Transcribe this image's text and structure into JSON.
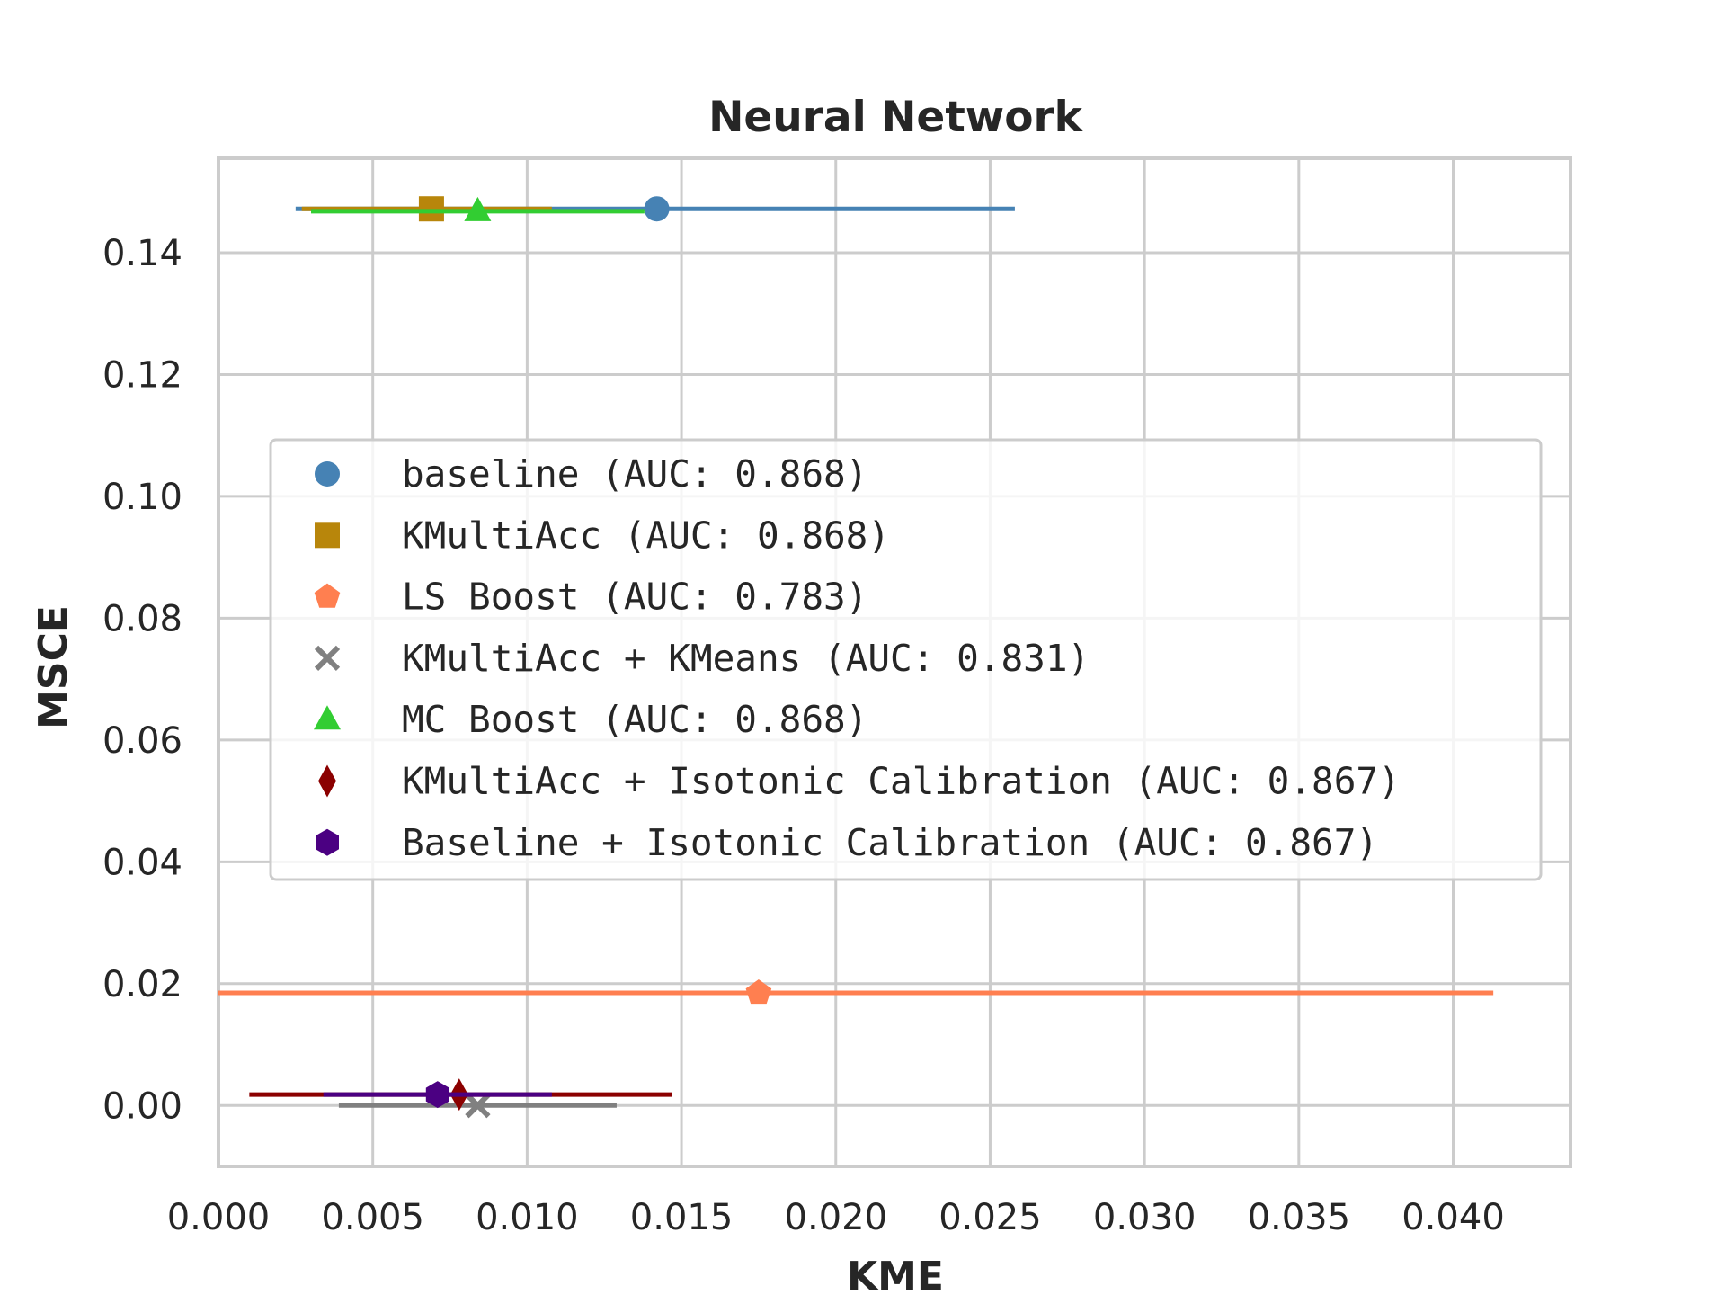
{
  "chart_data": {
    "type": "scatter",
    "title": "Neural Network",
    "xlabel": "KME",
    "ylabel": "MSCE",
    "xlim": [
      0.0,
      0.0438
    ],
    "ylim": [
      -0.01,
      0.1555
    ],
    "x_ticks": [
      "0.000",
      "0.005",
      "0.010",
      "0.015",
      "0.020",
      "0.025",
      "0.030",
      "0.035",
      "0.040"
    ],
    "x_tick_values": [
      0.0,
      0.005,
      0.01,
      0.015,
      0.02,
      0.025,
      0.03,
      0.035,
      0.04
    ],
    "y_ticks": [
      "0.00",
      "0.02",
      "0.04",
      "0.06",
      "0.08",
      "0.10",
      "0.12",
      "0.14"
    ],
    "y_tick_values": [
      0.0,
      0.02,
      0.04,
      0.06,
      0.08,
      0.1,
      0.12,
      0.14
    ],
    "grid": true,
    "legend_position": "center-right",
    "series": [
      {
        "name": "baseline (AUC: 0.868)",
        "x": 0.0142,
        "y": 0.1472,
        "x_err_low": 0.0025,
        "x_err_high": 0.0258,
        "color": "#4682b4",
        "marker": "circle"
      },
      {
        "name": "KMultiAcc (AUC: 0.868)",
        "x": 0.0069,
        "y": 0.1472,
        "x_err_low": 0.0027,
        "x_err_high": 0.0108,
        "color": "#b8860b",
        "marker": "square"
      },
      {
        "name": "LS Boost (AUC: 0.783)",
        "x": 0.0175,
        "y": 0.0185,
        "x_err_low": 0.0,
        "x_err_high": 0.0413,
        "color": "#ff7f50",
        "marker": "pentagon"
      },
      {
        "name": "KMultiAcc + KMeans (AUC: 0.831)",
        "x": 0.0084,
        "y": 0.0,
        "x_err_low": 0.0039,
        "x_err_high": 0.0129,
        "color": "#808080",
        "marker": "x"
      },
      {
        "name": "MC Boost (AUC: 0.868)",
        "x": 0.0084,
        "y": 0.1468,
        "x_err_low": 0.003,
        "x_err_high": 0.0138,
        "color": "#32cd32",
        "marker": "triangle"
      },
      {
        "name": "KMultiAcc + Isotonic Calibration (AUC: 0.867)",
        "x": 0.0078,
        "y": 0.0018,
        "x_err_low": 0.001,
        "x_err_high": 0.0147,
        "color": "#8b0000",
        "marker": "diamond"
      },
      {
        "name": "Baseline + Isotonic Calibration (AUC: 0.867)",
        "x": 0.0071,
        "y": 0.0018,
        "x_err_low": 0.0034,
        "x_err_high": 0.0108,
        "color": "#4b0082",
        "marker": "hexagon"
      }
    ]
  }
}
